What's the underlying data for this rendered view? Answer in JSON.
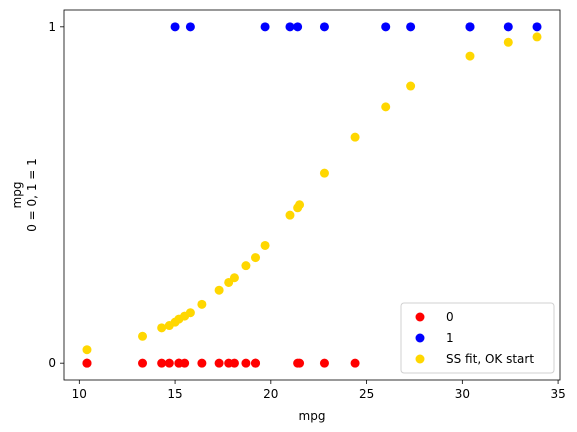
{
  "chart_data": {
    "type": "scatter",
    "xlabel": "mpg",
    "ylabel_lines": [
      "mpg",
      "0 = 0, 1 = 1"
    ],
    "xlim": [
      9.2,
      35.1
    ],
    "ylim": [
      -0.05,
      1.05
    ],
    "xticks": [
      10,
      15,
      20,
      25,
      30,
      35
    ],
    "yticks": [
      0,
      1
    ],
    "grid": false,
    "legend_position": "lower-right",
    "series": [
      {
        "name": "0",
        "color": "#ff0000",
        "x": [
          10.4,
          10.4,
          13.3,
          14.3,
          14.7,
          15.2,
          15.2,
          15.5,
          16.4,
          17.3,
          17.8,
          18.1,
          18.7,
          19.2,
          19.2,
          21.4,
          21.5,
          22.8,
          24.4
        ],
        "y": [
          0,
          0,
          0,
          0,
          0,
          0,
          0,
          0,
          0,
          0,
          0,
          0,
          0,
          0,
          0,
          0,
          0,
          0,
          0
        ]
      },
      {
        "name": "1",
        "color": "#0000ff",
        "x": [
          15.0,
          15.8,
          19.7,
          21.0,
          21.4,
          22.8,
          26.0,
          27.3,
          30.4,
          30.4,
          32.4,
          33.9
        ],
        "y": [
          1,
          1,
          1,
          1,
          1,
          1,
          1,
          1,
          1,
          1,
          1,
          1
        ]
      },
      {
        "name": "SS fit, OK start",
        "color": "#ffd700",
        "x": [
          10.4,
          13.3,
          14.3,
          14.7,
          15.0,
          15.2,
          15.5,
          15.8,
          16.4,
          17.3,
          17.8,
          18.1,
          18.7,
          19.2,
          19.7,
          21.0,
          21.4,
          21.5,
          22.8,
          24.4,
          26.0,
          27.3,
          30.4,
          32.4,
          33.9
        ],
        "y": [
          0.04,
          0.08,
          0.105,
          0.112,
          0.122,
          0.131,
          0.14,
          0.15,
          0.175,
          0.217,
          0.24,
          0.254,
          0.29,
          0.314,
          0.35,
          0.44,
          0.462,
          0.471,
          0.565,
          0.672,
          0.762,
          0.824,
          0.913,
          0.954,
          0.97
        ]
      }
    ]
  }
}
